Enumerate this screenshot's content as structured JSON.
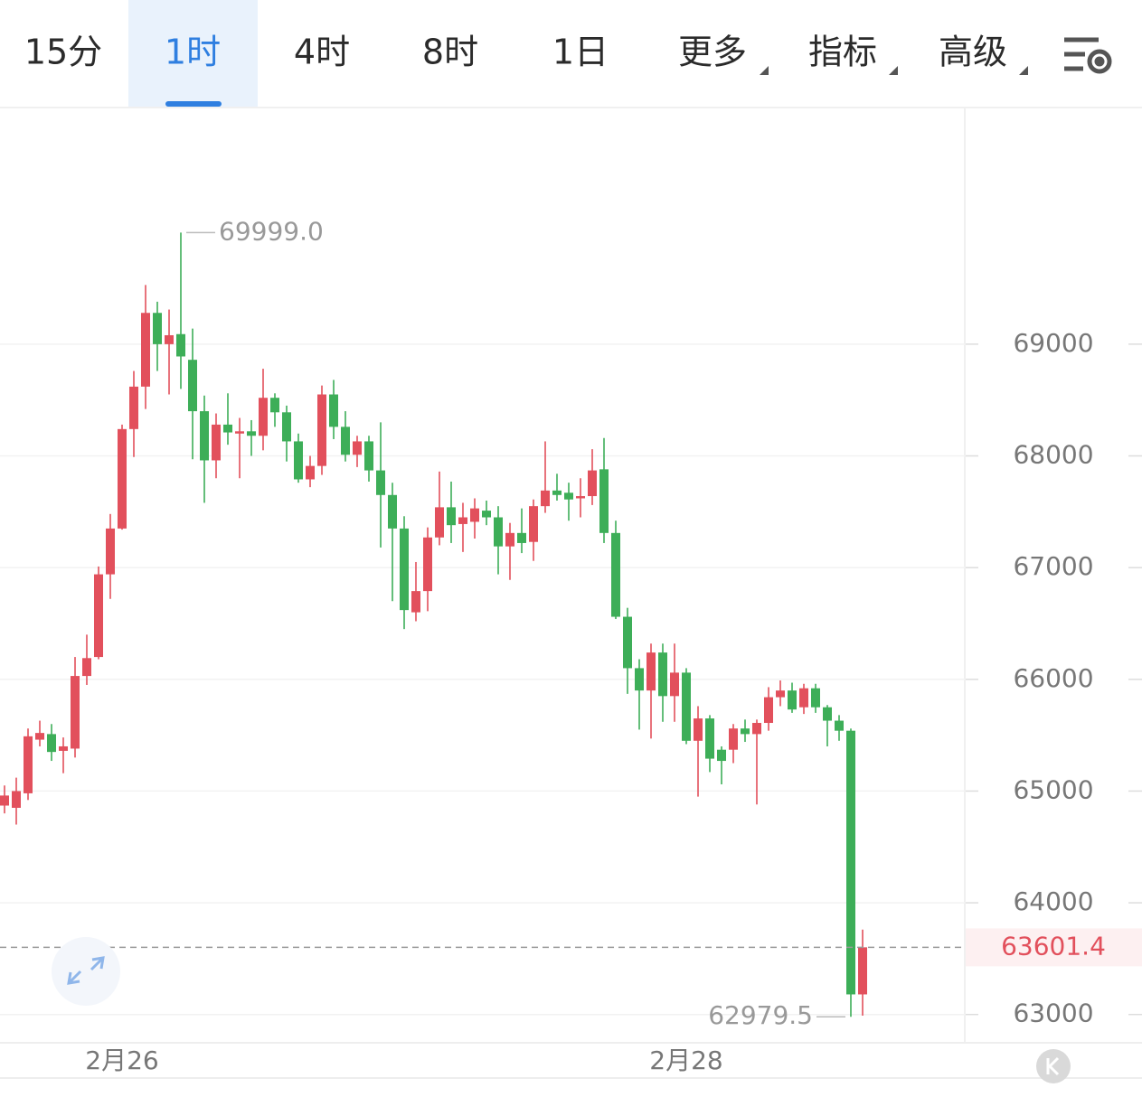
{
  "toolbar": {
    "tabs": [
      "15分",
      "1时",
      "4时",
      "8时",
      "1日",
      "更多",
      "指标",
      "高级"
    ],
    "active": 1
  },
  "chart_data": {
    "type": "candlestick",
    "categories": [
      null,
      null,
      null,
      null,
      null,
      null,
      null,
      null,
      null,
      null,
      "2月26",
      null,
      null,
      null,
      null,
      null,
      null,
      null,
      null,
      null,
      null,
      null,
      null,
      null,
      null,
      null,
      null,
      null,
      null,
      null,
      null,
      null,
      null,
      null,
      null,
      null,
      null,
      null,
      null,
      null,
      null,
      null,
      null,
      null,
      null,
      null,
      null,
      null,
      null,
      null,
      null,
      null,
      null,
      null,
      null,
      null,
      null,
      null,
      "2月28",
      null,
      null,
      null,
      null,
      null,
      null,
      null,
      null,
      null,
      null,
      null,
      null,
      null,
      null,
      null
    ],
    "open": [
      64870,
      64850,
      64980,
      65460,
      65510,
      65360,
      65380,
      66030,
      66200,
      66940,
      67350,
      68240,
      68620,
      69280,
      69000,
      69090,
      68860,
      68400,
      67960,
      68280,
      68200,
      68220,
      68180,
      68520,
      68390,
      68130,
      67790,
      67910,
      68550,
      68260,
      68010,
      68130,
      67870,
      67650,
      67350,
      66600,
      66790,
      67270,
      67540,
      67390,
      67410,
      67510,
      67450,
      67190,
      67310,
      67230,
      67550,
      67690,
      67670,
      67620,
      67640,
      67880,
      67310,
      66560,
      66100,
      65900,
      66240,
      65850,
      66060,
      65450,
      65650,
      65370,
      65370,
      65560,
      65510,
      65610,
      65840,
      65900,
      65750,
      65920,
      65750,
      65630,
      65540,
      63180
    ],
    "high": [
      65050,
      65120,
      65560,
      65630,
      65600,
      65480,
      66200,
      66400,
      67010,
      67480,
      68280,
      68760,
      69530,
      69380,
      69310,
      69999,
      69140,
      68540,
      68380,
      68560,
      68340,
      68320,
      68780,
      68560,
      68450,
      68200,
      68000,
      68630,
      68680,
      68400,
      68180,
      68180,
      68300,
      67760,
      67460,
      67050,
      67360,
      67860,
      67770,
      67580,
      67620,
      67600,
      67550,
      67400,
      67530,
      67610,
      68130,
      67840,
      67760,
      67800,
      68060,
      68160,
      67420,
      66640,
      66180,
      66320,
      66320,
      66320,
      66100,
      65760,
      65680,
      65400,
      65600,
      65640,
      65640,
      65930,
      65990,
      65970,
      65960,
      65960,
      65770,
      65680,
      65560,
      63760
    ],
    "low": [
      64800,
      64700,
      64920,
      65400,
      65270,
      65160,
      65300,
      65950,
      66180,
      66720,
      67340,
      67990,
      68420,
      68760,
      68550,
      68600,
      67970,
      67580,
      67800,
      68100,
      67800,
      68000,
      68050,
      68260,
      67950,
      67760,
      67720,
      67830,
      68150,
      67950,
      67900,
      67770,
      67180,
      66700,
      66450,
      66520,
      66610,
      67200,
      67220,
      67140,
      67260,
      67380,
      66940,
      66890,
      67130,
      67060,
      67490,
      67600,
      67420,
      67450,
      67560,
      67220,
      66540,
      65870,
      65550,
      65470,
      65620,
      65620,
      65420,
      64950,
      65170,
      65060,
      65250,
      65440,
      64880,
      65540,
      65760,
      65700,
      65690,
      65700,
      65400,
      65450,
      62979.5,
      62990
    ],
    "close": [
      64960,
      65000,
      65490,
      65520,
      65350,
      65400,
      66030,
      66190,
      66940,
      67350,
      68240,
      68620,
      69280,
      69000,
      69080,
      68890,
      68400,
      67960,
      68280,
      68210,
      68220,
      68180,
      68520,
      68390,
      68130,
      67790,
      67910,
      68550,
      68260,
      68010,
      68130,
      67870,
      67650,
      67350,
      66620,
      66790,
      67270,
      67540,
      67380,
      67450,
      67530,
      67450,
      67190,
      67310,
      67220,
      67550,
      67690,
      67650,
      67610,
      67640,
      67870,
      67310,
      66560,
      66100,
      65900,
      66240,
      65850,
      66060,
      65450,
      65650,
      65290,
      65270,
      65560,
      65510,
      65610,
      65840,
      65900,
      65730,
      65920,
      65750,
      65630,
      65540,
      63180,
      63601.4
    ],
    "up_color": "#e2505c",
    "down_color": "#3dae58",
    "max_label": "69999.0",
    "ylim": [
      62755,
      71110
    ],
    "yticks": [
      63000,
      64000,
      65000,
      66000,
      67000,
      68000,
      69000
    ],
    "grid": true
  }
}
